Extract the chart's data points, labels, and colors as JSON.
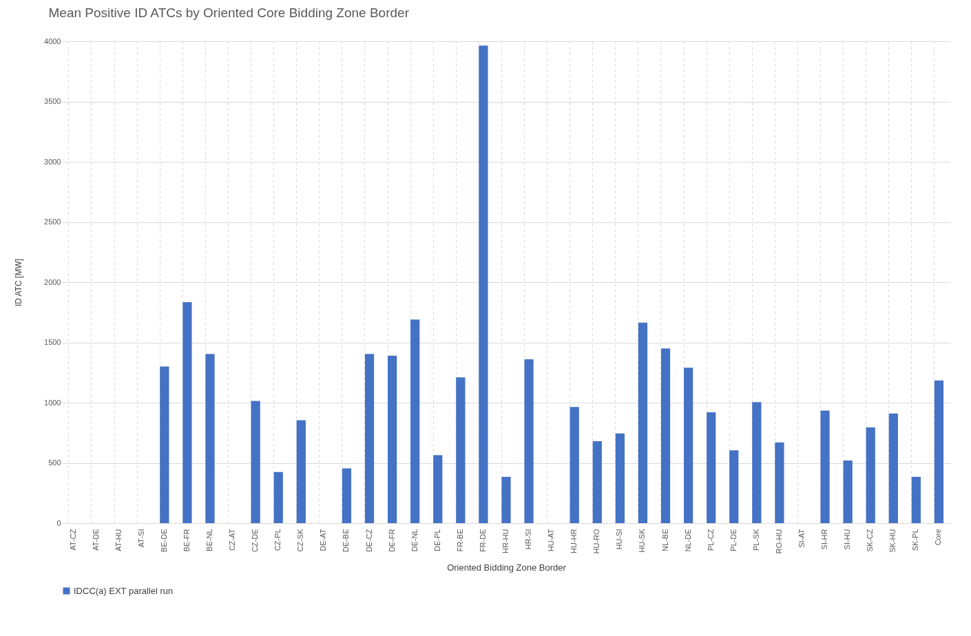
{
  "chart_data": {
    "type": "bar",
    "title": "Mean Positive ID ATCs by Oriented Core Bidding Zone Border",
    "xlabel": "Oriented Bidding Zone Border",
    "ylabel": "ID ATC [MW]",
    "categories": [
      "AT-CZ",
      "AT-DE",
      "AT-HU",
      "AT-SI",
      "BE-DE",
      "BE-FR",
      "BE-NL",
      "CZ-AT",
      "CZ-DE",
      "CZ-PL",
      "CZ-SK",
      "DE-AT",
      "DE-BE",
      "DE-CZ",
      "DE-FR",
      "DE-NL",
      "DE-PL",
      "FR-BE",
      "FR-DE",
      "HR-HU",
      "HR-SI",
      "HU-AT",
      "HU-HR",
      "HU-RO",
      "HU-SI",
      "HU-SK",
      "NL-BE",
      "NL-DE",
      "PL-CZ",
      "PL-DE",
      "PL-SK",
      "RO-HU",
      "SI-AT",
      "SI-HR",
      "SI-HU",
      "SK-CZ",
      "SK-HU",
      "SK-PL",
      "Core"
    ],
    "series": [
      {
        "name": "IDCC(a) EXT parallel run",
        "color": "#4472c4",
        "values": [
          null,
          null,
          null,
          null,
          1300,
          1835,
          1405,
          null,
          1015,
          425,
          855,
          null,
          455,
          1405,
          1390,
          1690,
          565,
          1210,
          3965,
          385,
          1360,
          null,
          965,
          680,
          745,
          1665,
          1450,
          1290,
          920,
          605,
          1005,
          670,
          null,
          935,
          520,
          795,
          910,
          385,
          1185
        ]
      }
    ],
    "ylim": [
      0,
      4000
    ],
    "yticks": [
      0,
      500,
      1000,
      1500,
      2000,
      2500,
      3000,
      3500,
      4000
    ],
    "grid": true,
    "legend": "bottom"
  }
}
